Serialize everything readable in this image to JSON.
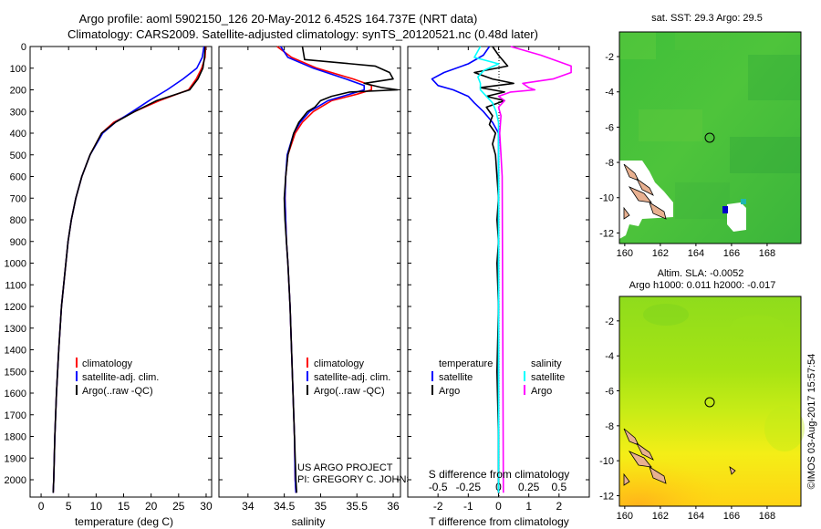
{
  "header": {
    "line1": "Argo profile: aoml 5902150_126 20-May-2012 6.452S 164.737E (NRT data)",
    "line2": "Climatology: CARS2009. Satellite-adjusted climatology: synTS_20120521.nc (0.48d later)"
  },
  "colors": {
    "clim": "#ff0000",
    "sat": "#0000ff",
    "argo": "#000000",
    "sat_sal": "#00ffff",
    "argo_sal": "#ff00ff"
  },
  "project": {
    "line1": "US ARGO PROJECT",
    "line2": "PI: GREGORY C. JOHNSON"
  },
  "stamp": "©IMOS 03-Aug-2017 15:57:54",
  "chart_data": [
    {
      "type": "line",
      "title": "",
      "xlabel": "temperature (deg C)",
      "ylabel": "",
      "xlim": [
        -2,
        31
      ],
      "ylim": [
        2080,
        0
      ],
      "xticks": [
        0,
        5,
        10,
        15,
        20,
        25,
        30
      ],
      "yticks": [
        0,
        100,
        200,
        300,
        400,
        500,
        600,
        700,
        800,
        900,
        1000,
        1100,
        1200,
        1300,
        1400,
        1500,
        1600,
        1700,
        1800,
        1900,
        2000
      ],
      "legend": [
        "climatology",
        "satellite-adj. clim.",
        "Argo(..raw -QC)"
      ],
      "series": [
        {
          "name": "climatology",
          "color": "clim",
          "depth": [
            0,
            50,
            100,
            150,
            200,
            250,
            300,
            350,
            400,
            500,
            600,
            700,
            800,
            900,
            1000,
            1200,
            1400,
            1600,
            1800,
            2000,
            2060
          ],
          "values": [
            29.9,
            29.8,
            29.2,
            28.2,
            26.8,
            21.5,
            17.0,
            13.2,
            11.0,
            8.9,
            7.4,
            6.3,
            5.5,
            4.9,
            4.5,
            3.7,
            3.2,
            2.8,
            2.5,
            2.3,
            2.2
          ]
        },
        {
          "name": "satellite-adj. clim.",
          "color": "sat",
          "depth": [
            0,
            50,
            100,
            150,
            200,
            250,
            300,
            350,
            400,
            500,
            600,
            700,
            800,
            900,
            1000,
            1200,
            1400,
            1600,
            1800,
            2000,
            2060
          ],
          "values": [
            29.6,
            29.3,
            28.3,
            25.8,
            22.9,
            19.6,
            16.6,
            13.5,
            11.2,
            8.9,
            7.4,
            6.3,
            5.5,
            4.9,
            4.5,
            3.7,
            3.2,
            2.8,
            2.5,
            2.3,
            2.2
          ]
        },
        {
          "name": "Argo(..raw -QC)",
          "color": "argo",
          "depth": [
            0,
            50,
            100,
            150,
            200,
            250,
            300,
            350,
            400,
            500,
            600,
            700,
            800,
            900,
            1000,
            1200,
            1400,
            1600,
            1800,
            2000,
            2060
          ],
          "values": [
            29.8,
            29.7,
            29.4,
            28.5,
            27.0,
            21.0,
            17.0,
            13.5,
            11.0,
            8.9,
            7.4,
            6.3,
            5.5,
            4.9,
            4.5,
            3.7,
            3.2,
            2.8,
            2.5,
            2.3,
            2.2
          ]
        }
      ]
    },
    {
      "type": "line",
      "title": "",
      "xlabel": "salinity",
      "ylabel": "",
      "xlim": [
        33.6,
        36.1
      ],
      "ylim": [
        2080,
        0
      ],
      "xticks": [
        34,
        34.5,
        35,
        35.5,
        36
      ],
      "legend": [
        "climatology",
        "satellite-adj. clim.",
        "Argo(..raw -QC)"
      ],
      "series": [
        {
          "name": "climatology",
          "color": "clim",
          "depth": [
            0,
            50,
            100,
            150,
            180,
            200,
            220,
            250,
            300,
            350,
            400,
            500,
            600,
            700,
            800,
            900,
            1000,
            1200,
            1400,
            1600,
            1800,
            2000,
            2060
          ],
          "values": [
            34.4,
            34.6,
            34.95,
            35.45,
            35.7,
            35.7,
            35.5,
            35.15,
            34.9,
            34.75,
            34.65,
            34.55,
            34.52,
            34.51,
            34.52,
            34.53,
            34.55,
            34.58,
            34.6,
            34.62,
            34.64,
            34.65,
            34.66
          ]
        },
        {
          "name": "satellite-adj. clim.",
          "color": "sat",
          "depth": [
            0,
            50,
            100,
            150,
            180,
            200,
            220,
            250,
            300,
            350,
            400,
            500,
            600,
            700,
            800,
            900,
            1000,
            1200,
            1400,
            1600,
            1800,
            2000,
            2060
          ],
          "values": [
            34.45,
            34.55,
            34.9,
            35.35,
            35.6,
            35.6,
            35.4,
            35.1,
            34.85,
            34.72,
            34.63,
            34.54,
            34.52,
            34.51,
            34.52,
            34.53,
            34.55,
            34.58,
            34.6,
            34.62,
            34.64,
            34.65,
            34.66
          ]
        },
        {
          "name": "Argo(..raw -QC)",
          "color": "argo",
          "depth": [
            0,
            60,
            90,
            120,
            150,
            170,
            190,
            200,
            210,
            230,
            250,
            280,
            300,
            350,
            400,
            500,
            600,
            700,
            800,
            900,
            1000,
            1200,
            1400,
            1600,
            1800,
            2000,
            2060
          ],
          "values": [
            34.75,
            34.78,
            35.75,
            35.95,
            36.0,
            35.6,
            35.85,
            36.06,
            35.4,
            35.15,
            35.0,
            34.92,
            34.82,
            34.7,
            34.63,
            34.55,
            34.52,
            34.5,
            34.51,
            34.53,
            34.55,
            34.58,
            34.6,
            34.62,
            34.64,
            34.66,
            34.67
          ]
        }
      ]
    },
    {
      "type": "line",
      "title": "",
      "xlabel": "T difference from climatology",
      "xlabel_top": "S difference from climatology",
      "ylabel": "",
      "xlim": [
        -3,
        3
      ],
      "ylim": [
        2080,
        0
      ],
      "xticks": [
        -2,
        -1,
        0,
        1,
        2
      ],
      "xticks_s": [
        "-0.5",
        "-0.25",
        "0",
        "0.25",
        "0.5"
      ],
      "legend_titles": [
        "temperature",
        "salinity"
      ],
      "legend": [
        "satellite",
        "Argo",
        "satellite",
        "Argo"
      ],
      "series": [
        {
          "name": "temperature satellite",
          "color": "sat",
          "depth": [
            0,
            40,
            80,
            120,
            150,
            180,
            200,
            230,
            260,
            300,
            350,
            400,
            500,
            600,
            2060
          ],
          "values": [
            -0.3,
            -0.5,
            -1.0,
            -1.8,
            -2.2,
            -2.0,
            -1.5,
            -1.0,
            -0.8,
            -0.5,
            -0.2,
            0.0,
            0.0,
            0.0,
            0.0
          ]
        },
        {
          "name": "temperature Argo",
          "color": "argo",
          "depth": [
            0,
            40,
            90,
            120,
            150,
            170,
            190,
            210,
            230,
            250,
            280,
            320,
            360,
            400,
            450,
            500,
            600,
            700,
            800,
            900,
            1000,
            1200,
            1500,
            1800,
            2060
          ],
          "values": [
            -0.2,
            0.0,
            0.3,
            -0.8,
            -0.2,
            0.5,
            -0.6,
            0.2,
            -0.4,
            0.2,
            -0.4,
            -0.2,
            -0.3,
            -0.1,
            -0.2,
            -0.1,
            -0.05,
            0.0,
            -0.05,
            0.0,
            -0.05,
            0.0,
            -0.05,
            0.0,
            0.0
          ]
        },
        {
          "name": "salinity satellite",
          "color": "sat_sal",
          "depth": [
            0,
            50,
            80,
            110,
            140,
            170,
            200,
            230,
            260,
            300,
            350,
            400,
            500,
            600,
            2060
          ],
          "values": [
            -0.15,
            -0.2,
            0.0,
            -0.12,
            -0.17,
            -0.15,
            -0.15,
            -0.1,
            -0.05,
            -0.02,
            0.0,
            0.0,
            0.0,
            0.0,
            0.0
          ]
        },
        {
          "name": "salinity Argo",
          "color": "argo_sal",
          "depth": [
            0,
            40,
            70,
            90,
            120,
            150,
            170,
            190,
            200,
            210,
            230,
            250,
            280,
            320,
            400,
            500,
            600,
            2060
          ],
          "values": [
            0.1,
            0.35,
            0.5,
            0.6,
            0.6,
            0.45,
            0.2,
            0.25,
            0.3,
            0.1,
            0.0,
            0.05,
            0.0,
            0.02,
            0.01,
            0.02,
            0.03,
            0.04
          ]
        }
      ]
    },
    {
      "type": "heatmap",
      "title": "sat. SST: 29.3 Argo: 29.5",
      "xlim": [
        159.7,
        169.9
      ],
      "ylim": [
        -12.6,
        -0.6
      ],
      "xticks": [
        160,
        162,
        164,
        166,
        168
      ],
      "yticks": [
        -2,
        -4,
        -6,
        -8,
        -10,
        -12
      ],
      "marker": {
        "lon": 164.737,
        "lat": -6.452
      }
    },
    {
      "type": "heatmap",
      "title": "Altim. SLA: -0.0052",
      "subtitle": "Argo h1000: 0.011 h2000: -0.017",
      "xlim": [
        159.7,
        169.9
      ],
      "ylim": [
        -12.6,
        -0.6
      ],
      "xticks": [
        160,
        162,
        164,
        166,
        168
      ],
      "yticks": [
        -2,
        -4,
        -6,
        -8,
        -10,
        -12
      ],
      "marker": {
        "lon": 164.737,
        "lat": -6.452
      }
    }
  ]
}
